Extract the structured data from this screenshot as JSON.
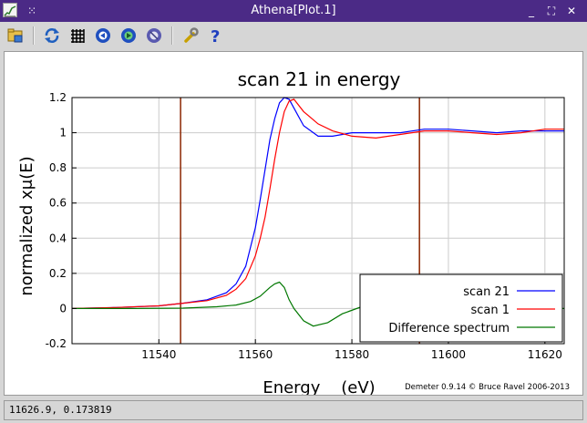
{
  "window": {
    "title": "Athena[Plot.1]",
    "controls": [
      "minimize-icon",
      "maximize-icon",
      "close-icon"
    ]
  },
  "toolbar": {
    "tools": [
      {
        "name": "open-folder-icon",
        "color": "#d4a017"
      },
      {
        "name": "refresh-icon",
        "color": "#1f5fbf"
      },
      {
        "name": "grid-icon",
        "color": "#000000"
      },
      {
        "name": "zoom-in-icon",
        "color": "#1f4fbf"
      },
      {
        "name": "zoom-out-icon",
        "color": "#2e8b57"
      },
      {
        "name": "zoom-reset-icon",
        "color": "#5a5ab0"
      },
      {
        "name": "wrench-icon",
        "color": "#c8a000"
      },
      {
        "name": "help-icon",
        "color": "#1f3fbf"
      }
    ]
  },
  "chart_data": {
    "type": "line",
    "title": "scan 21 in energy",
    "xlabel": "Energy    (eV)",
    "ylabel": "normalized xμ(E)",
    "xlim": [
      11522,
      11624
    ],
    "ylim": [
      -0.2,
      1.2
    ],
    "xticks": [
      "11540",
      "11560",
      "11580",
      "11600",
      "11620"
    ],
    "xtick_values": [
      11540,
      11560,
      11580,
      11600,
      11620
    ],
    "yticks": [
      "-0.2",
      "0",
      "0.2",
      "0.4",
      "0.6",
      "0.8",
      "1",
      "1.2"
    ],
    "ytick_values": [
      -0.2,
      0,
      0.2,
      0.4,
      0.6,
      0.8,
      1.0,
      1.2
    ],
    "grid": true,
    "legend_position": "bottom-right",
    "vlines": {
      "values": [
        11544.5,
        11594
      ],
      "color": "#8b2500"
    },
    "footer_text": "Demeter 0.9.14 © Bruce Ravel 2006-2013",
    "series": [
      {
        "name": "scan 21",
        "color": "#0000ff",
        "x": [
          11522,
          11530,
          11540,
          11545,
          11550,
          11554,
          11556,
          11558,
          11560,
          11561,
          11562,
          11563,
          11564,
          11565,
          11566,
          11567,
          11568,
          11570,
          11573,
          11576,
          11580,
          11585,
          11590,
          11595,
          11600,
          11605,
          11610,
          11615,
          11620,
          11624
        ],
        "y": [
          0.0,
          0.005,
          0.015,
          0.03,
          0.05,
          0.09,
          0.14,
          0.24,
          0.46,
          0.62,
          0.79,
          0.96,
          1.08,
          1.17,
          1.2,
          1.19,
          1.14,
          1.04,
          0.98,
          0.98,
          1.0,
          1.0,
          1.0,
          1.02,
          1.02,
          1.01,
          1.0,
          1.01,
          1.01,
          1.01
        ]
      },
      {
        "name": "scan 1",
        "color": "#ff0000",
        "x": [
          11522,
          11530,
          11540,
          11545,
          11550,
          11554,
          11556,
          11558,
          11560,
          11561,
          11562,
          11563,
          11564,
          11565,
          11566,
          11567,
          11568,
          11570,
          11573,
          11576,
          11580,
          11585,
          11590,
          11595,
          11600,
          11605,
          11610,
          11615,
          11620,
          11624
        ],
        "y": [
          0.0,
          0.005,
          0.015,
          0.03,
          0.045,
          0.075,
          0.11,
          0.17,
          0.3,
          0.4,
          0.52,
          0.68,
          0.85,
          1.0,
          1.12,
          1.18,
          1.19,
          1.12,
          1.05,
          1.01,
          0.98,
          0.97,
          0.99,
          1.01,
          1.01,
          1.0,
          0.99,
          1.0,
          1.02,
          1.02
        ]
      },
      {
        "name": "Difference spectrum",
        "color": "#007700",
        "x": [
          11522,
          11535,
          11545,
          11552,
          11556,
          11559,
          11561,
          11563,
          11564,
          11565,
          11566,
          11567,
          11568,
          11570,
          11572,
          11575,
          11578,
          11582,
          11586,
          11590,
          11594,
          11600,
          11606,
          11612,
          11618,
          11624
        ],
        "y": [
          0.0,
          0.0,
          0.002,
          0.01,
          0.02,
          0.04,
          0.07,
          0.12,
          0.14,
          0.15,
          0.12,
          0.05,
          0.0,
          -0.07,
          -0.1,
          -0.08,
          -0.03,
          0.01,
          0.02,
          0.01,
          0.0,
          0.005,
          0.01,
          0.005,
          0.0,
          0.0
        ]
      }
    ]
  },
  "status": {
    "coords": "11626.9, 0.173819"
  }
}
